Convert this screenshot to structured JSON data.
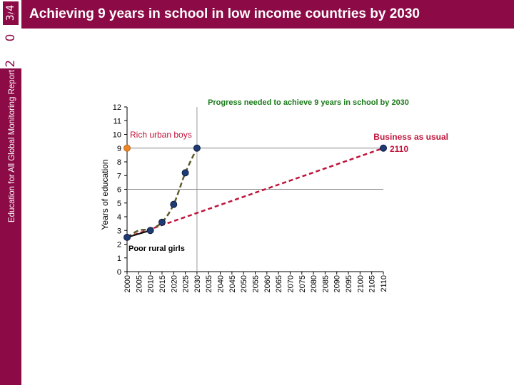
{
  "header": {
    "title": "Achieving 9 years in school in low income countries by 2030",
    "page_label": "3/4",
    "year_digits": "2 0 1",
    "report_name": "Education for All Global Monitoring Report"
  },
  "colors": {
    "brand": "#8c0a46",
    "title_green": "#1a7a1a",
    "business_red": "#c0143c",
    "marker_blue": "#1f3b73",
    "rich_orange": "#e8862a"
  },
  "chart_data": {
    "type": "line",
    "title": "Progress needed to achieve 9 years in school by 2030",
    "ylabel": "Years of education",
    "xlabel": "",
    "ylim": [
      0,
      12
    ],
    "xlim": [
      2000,
      2110
    ],
    "y_ticks": [
      "0",
      "1",
      "2",
      "3",
      "4",
      "5",
      "6",
      "7",
      "8",
      "9",
      "10",
      "11",
      "12"
    ],
    "x_ticks": [
      "2000",
      "2005",
      "2010",
      "2015",
      "2020",
      "2025",
      "2030",
      "2035",
      "2040",
      "2045",
      "2050",
      "2055",
      "2060",
      "2065",
      "2070",
      "2075",
      "2080",
      "2085",
      "2090",
      "2095",
      "2100",
      "2105",
      "2110"
    ],
    "grid": false,
    "reference_lines": [
      {
        "y": 9,
        "x": [
          2000,
          2110
        ]
      },
      {
        "y": 6,
        "x": [
          2000,
          2110
        ]
      }
    ],
    "series": [
      {
        "style": "solid-black",
        "points": [
          [
            2000,
            2.5
          ],
          [
            2010,
            3.0
          ]
        ]
      },
      {
        "style": "dashed-olive",
        "points": [
          [
            2000,
            2.5
          ],
          [
            2005,
            3.0
          ],
          [
            2010,
            3.1
          ],
          [
            2015,
            3.6
          ],
          [
            2020,
            4.9
          ],
          [
            2025,
            7.2
          ],
          [
            2030,
            9.0
          ]
        ]
      },
      {
        "style": "dashed-red",
        "points": [
          [
            2000,
            2.5
          ],
          [
            2110,
            9.0
          ]
        ]
      }
    ],
    "markers": [
      {
        "x": 2000,
        "y": 2.5,
        "color": "blue"
      },
      {
        "x": 2010,
        "y": 3.0,
        "color": "blue"
      },
      {
        "x": 2015,
        "y": 3.6,
        "color": "blue"
      },
      {
        "x": 2020,
        "y": 4.9,
        "color": "blue"
      },
      {
        "x": 2025,
        "y": 7.2,
        "color": "blue"
      },
      {
        "x": 2030,
        "y": 9.0,
        "color": "blue"
      },
      {
        "x": 2110,
        "y": 9.0,
        "color": "blue"
      },
      {
        "x": 2000,
        "y": 9.0,
        "color": "orange"
      }
    ],
    "annotations": {
      "rich": "Rich urban boys",
      "poor": "Poor rural girls",
      "business": "Business as usual",
      "business_year": "2110"
    }
  }
}
